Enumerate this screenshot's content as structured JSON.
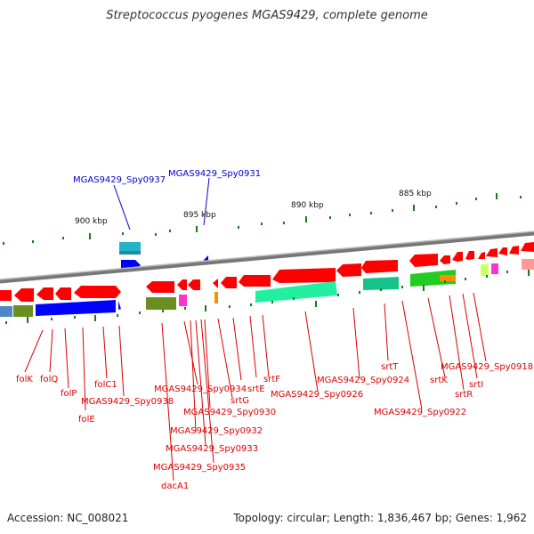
{
  "title": "Streptococcus pyogenes MGAS9429, complete genome",
  "footer": {
    "accession": "Accession: NC_008021",
    "topology": "Topology: circular; Length: 1,836,467 bp; Genes: 1,962"
  },
  "kbp_labels": [
    "900 kbp",
    "895 kbp",
    "890 kbp",
    "885 kbp"
  ],
  "blue_labels": [
    "MGAS9429_Spy0937",
    "MGAS9429_Spy0931"
  ],
  "red_labels": [
    "folK",
    "folQ",
    "folP",
    "folE",
    "folC1",
    "MGAS9429_Spy0938",
    "MGAS9429_Spy0934",
    "srtG",
    "MGAS9429_Spy0930",
    "MGAS9429_Spy0932",
    "MGAS9429_Spy0933",
    "MGAS9429_Spy0935",
    "dacA1",
    "srtE",
    "srtF",
    "MGAS9429_Spy0926",
    "srtT",
    "MGAS9429_Spy0924",
    "MGAS9429_Spy0922",
    "srtK",
    "srtR",
    "srtI",
    "MGAS9429_Spy0918"
  ],
  "colors": {
    "forward_gene": "#ff0000",
    "blue_gene": "#0000ff",
    "backbone": "#888888",
    "tick": "#1a7a1a"
  }
}
